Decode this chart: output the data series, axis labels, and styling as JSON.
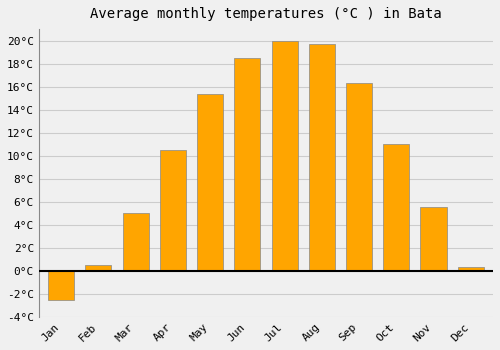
{
  "months": [
    "Jan",
    "Feb",
    "Mar",
    "Apr",
    "May",
    "Jun",
    "Jul",
    "Aug",
    "Sep",
    "Oct",
    "Nov",
    "Dec"
  ],
  "values": [
    -2.5,
    0.5,
    5.0,
    10.5,
    15.4,
    18.5,
    20.0,
    19.7,
    16.3,
    11.0,
    5.5,
    0.3
  ],
  "bar_color": "#FFA500",
  "bar_edge_color": "#888888",
  "title": "Average monthly temperatures (°C ) in Bata",
  "ylim": [
    -4,
    21
  ],
  "yticks": [
    20,
    18,
    16,
    14,
    12,
    10,
    8,
    6,
    4,
    2,
    0,
    -2,
    -4
  ],
  "background_color": "#f0f0f0",
  "plot_bg_color": "#f0f0f0",
  "grid_color": "#cccccc",
  "title_fontsize": 10,
  "tick_fontsize": 8,
  "font_family": "monospace"
}
